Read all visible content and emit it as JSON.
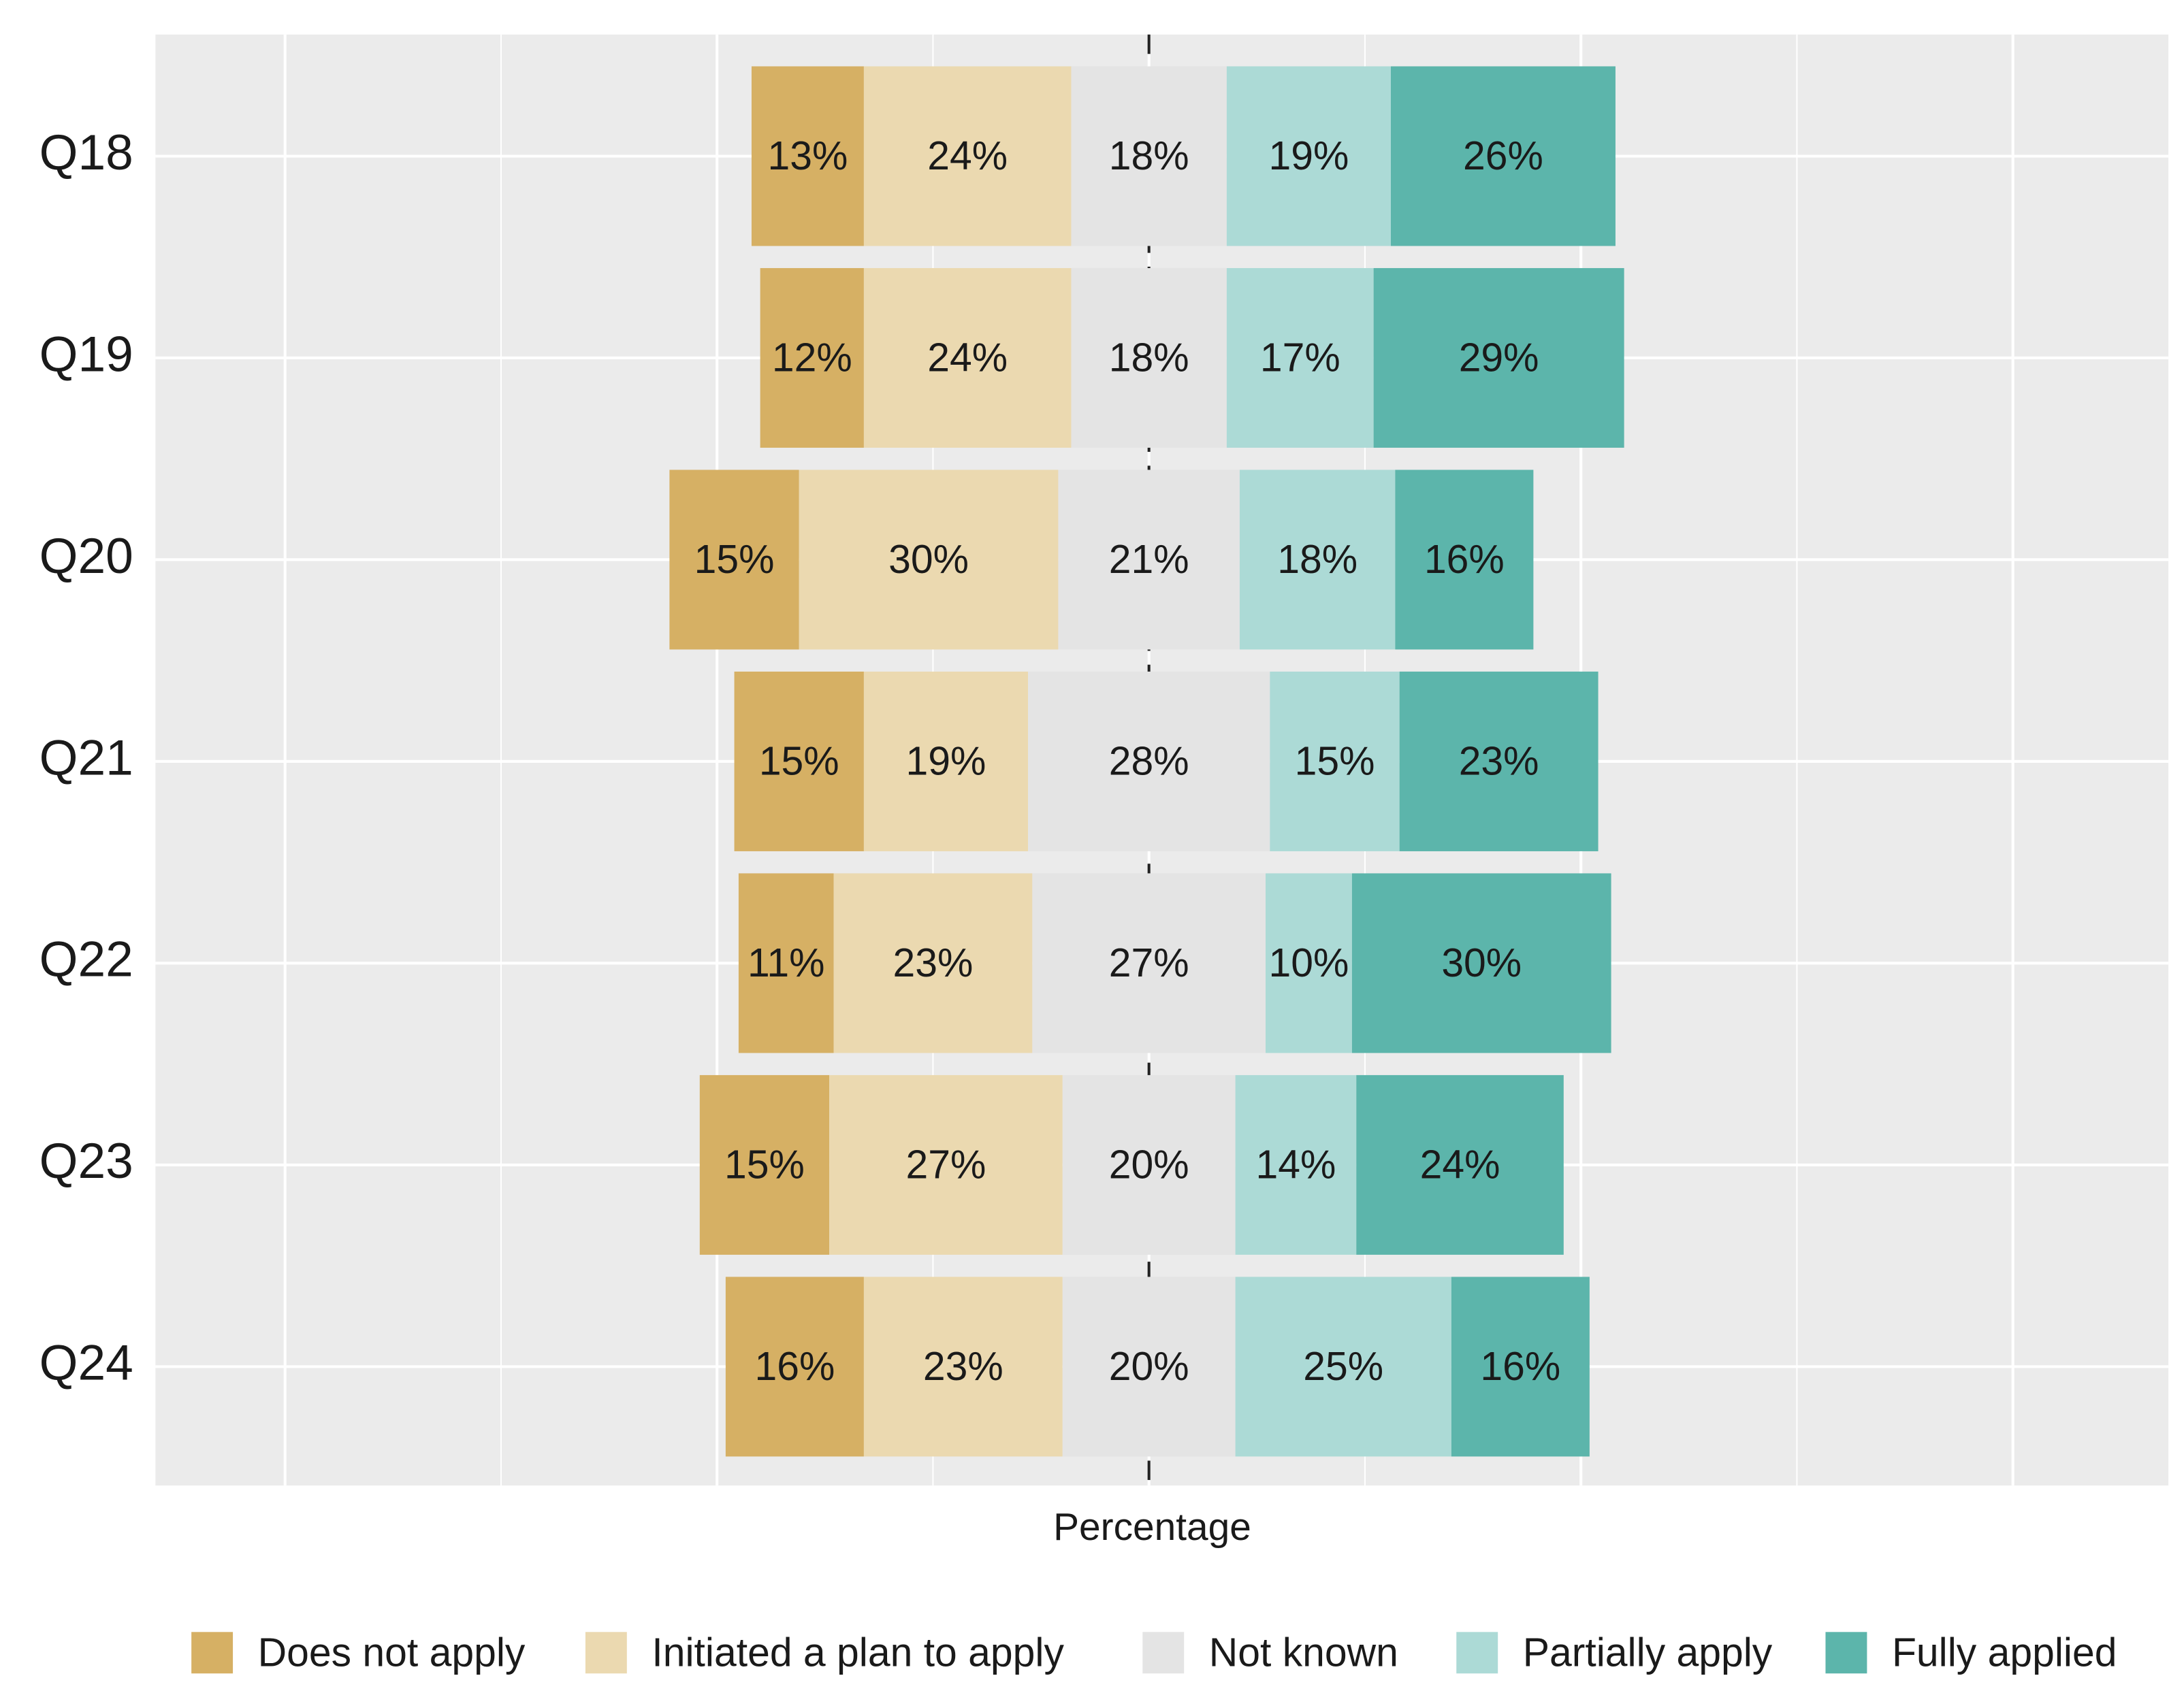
{
  "chart_data": {
    "type": "diverging_bar",
    "x_label": "Percentage",
    "categories": [
      "Q18",
      "Q19",
      "Q20",
      "Q21",
      "Q22",
      "Q23",
      "Q24"
    ],
    "neutral_series": 2,
    "series": [
      {
        "name": "Does not apply",
        "color": "#d6b064",
        "values": [
          13,
          12,
          15,
          15,
          11,
          15,
          16
        ],
        "value_labels": [
          "13%",
          "12%",
          "15%",
          "15%",
          "11%",
          "15%",
          "16%"
        ]
      },
      {
        "name": "Initiated a plan to apply",
        "color": "#ebd9b0",
        "values": [
          24,
          24,
          30,
          19,
          23,
          27,
          23
        ],
        "value_labels": [
          "24%",
          "24%",
          "30%",
          "19%",
          "23%",
          "27%",
          "23%"
        ]
      },
      {
        "name": "Not known",
        "color": "#e4e4e4",
        "values": [
          18,
          18,
          21,
          28,
          27,
          20,
          20
        ],
        "value_labels": [
          "18%",
          "18%",
          "21%",
          "28%",
          "27%",
          "20%",
          "20%"
        ]
      },
      {
        "name": "Partially apply",
        "color": "#acdad6",
        "values": [
          19,
          17,
          18,
          15,
          10,
          14,
          25
        ],
        "value_labels": [
          "19%",
          "17%",
          "18%",
          "15%",
          "10%",
          "14%",
          "25%"
        ]
      },
      {
        "name": "Fully applied",
        "color": "#5cb5ab",
        "values": [
          26,
          29,
          16,
          23,
          30,
          24,
          16
        ],
        "value_labels": [
          "26%",
          "29%",
          "16%",
          "23%",
          "30%",
          "24%",
          "16%"
        ]
      }
    ],
    "xlim": [
      -115,
      118
    ],
    "xticks": [
      -100,
      -50,
      0,
      50,
      100
    ],
    "grid": true,
    "legend": "bottom"
  }
}
